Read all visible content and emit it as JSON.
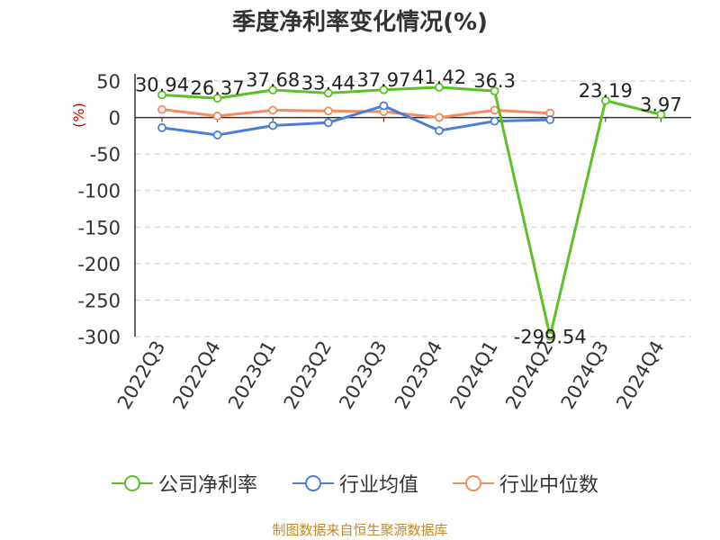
{
  "title": "季度净利率变化情况(%)",
  "source": "制图数据来自恒生聚源数据库",
  "colors": {
    "company": "#5cc126",
    "industry_avg": "#4a7fd8",
    "industry_median": "#f38c5f",
    "axis_label": "#cc0000",
    "grid": "#cccccc"
  },
  "chart_data": {
    "type": "line",
    "title": "季度净利率变化情况(%)",
    "ylabel": "(%)",
    "xlabel": "",
    "categories": [
      "2022Q3",
      "2022Q4",
      "2023Q1",
      "2023Q2",
      "2023Q3",
      "2023Q4",
      "2024Q1",
      "2024Q2",
      "2024Q3",
      "2024Q4"
    ],
    "yticks": [
      "50",
      "0",
      "-50",
      "-100",
      "-150",
      "-200",
      "-250",
      "-300"
    ],
    "ylim": [
      -300,
      50
    ],
    "grid": "horizontal dashed",
    "legend_position": "bottom",
    "series": [
      {
        "name": "公司净利率",
        "color": "#5cc126",
        "values": [
          30.94,
          26.37,
          37.68,
          33.44,
          37.97,
          41.42,
          36.3,
          -299.54,
          23.19,
          3.97
        ],
        "labels": [
          "30.94",
          "26.37",
          "37.68",
          "33.44",
          "37.97",
          "41.42",
          "36.3",
          "-299.54",
          "23.19",
          "3.97"
        ]
      },
      {
        "name": "行业均值",
        "color": "#4a7fd8",
        "values": [
          -14,
          -24,
          -11,
          -7,
          16,
          -18,
          -5,
          -3,
          null,
          null
        ]
      },
      {
        "name": "行业中位数",
        "color": "#f38c5f",
        "values": [
          11,
          2,
          10,
          9,
          8,
          0,
          10,
          6,
          null,
          null
        ]
      }
    ]
  }
}
